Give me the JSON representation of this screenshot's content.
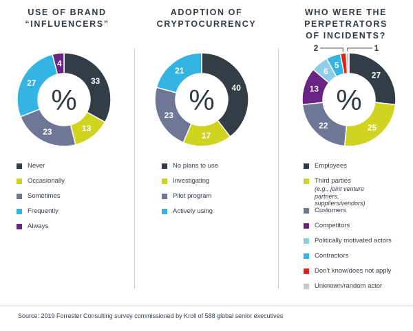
{
  "chart_data": [
    {
      "type": "pie",
      "title": "USE OF BRAND\n“INFLUENCERS”",
      "center_label": "%",
      "categories": [
        "Never",
        "Occasionally",
        "Sometimes",
        "Frequently",
        "Always"
      ],
      "values": [
        33,
        13,
        23,
        27,
        4
      ],
      "colors": [
        "#333d47",
        "#cfd41e",
        "#6e7796",
        "#33b4e2",
        "#6a2584"
      ]
    },
    {
      "type": "pie",
      "title": "ADOPTION OF\nCRYPTOCURRENCY",
      "center_label": "%",
      "categories": [
        "No plans to use",
        "Investigating",
        "Pilot program",
        "Actively using"
      ],
      "values": [
        40,
        17,
        23,
        21
      ],
      "colors": [
        "#333d47",
        "#cfd41e",
        "#6e7796",
        "#33b4e2"
      ]
    },
    {
      "type": "pie",
      "title": "WHO WERE THE\nPERPETRATORS\nOF INCIDENTS?",
      "center_label": "%",
      "categories": [
        "Employees",
        "Third parties",
        "Customers",
        "Competitors",
        "Politically motivated actors",
        "Contractors",
        "Don’t know/does not apply",
        "Unknown/random actor"
      ],
      "category_notes": [
        "",
        "(e.g., joint venture partners,\nsuppliers/vendors)",
        "",
        "",
        "",
        "",
        "",
        ""
      ],
      "values": [
        27,
        25,
        22,
        13,
        6,
        5,
        2,
        1
      ],
      "colors": [
        "#333d47",
        "#cfd41e",
        "#6e7796",
        "#6a2584",
        "#8dcde9",
        "#33b4e2",
        "#e3241b",
        "#c7c7c7"
      ]
    }
  ],
  "source": "Source: 2019 Forrester Consulting survey commissioned by Kroll of 588 global senior executives"
}
